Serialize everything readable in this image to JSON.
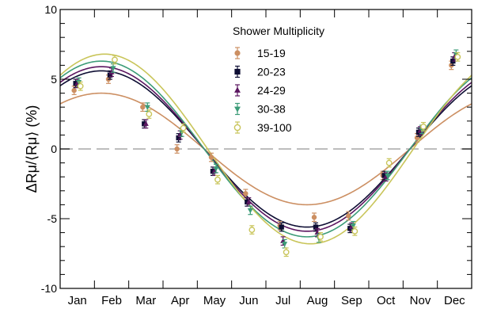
{
  "chart_data": {
    "type": "scatter",
    "ylabel": "ΔRμ/⟨Rμ⟩ (%)",
    "ylim": [
      -10,
      10
    ],
    "yticks": [
      -10,
      -5,
      0,
      5,
      10
    ],
    "x_tick_labels": [
      "Jan",
      "Feb",
      "Mar",
      "Apr",
      "May",
      "Jun",
      "Jul",
      "Aug",
      "Sep",
      "Oct",
      "Nov",
      "Dec"
    ],
    "reference_line": 0,
    "legend": {
      "title": "Shower Multiplicity",
      "placement": "top-right"
    },
    "series": [
      {
        "name": "15-19",
        "color": "#cc8f62",
        "marker": "circle-filled",
        "x": [
          0.5,
          1.5,
          2.5,
          3.5,
          4.5,
          5.5,
          6.5,
          7.5,
          8.5,
          9.5,
          10.5,
          11.5
        ],
        "y": [
          4.2,
          5.0,
          3.0,
          0.0,
          -0.6,
          -3.2,
          -5.5,
          -4.9,
          -4.8,
          -1.9,
          0.8,
          6.0
        ],
        "err": [
          0.3,
          0.3,
          0.3,
          0.3,
          0.3,
          0.3,
          0.3,
          0.3,
          0.3,
          0.3,
          0.3,
          0.3
        ],
        "fit": {
          "amp": 4.0,
          "peak_x": 1.2,
          "period": 12
        }
      },
      {
        "name": "20-23",
        "color": "#0d0d33",
        "marker": "square-filled",
        "x": [
          0.5,
          1.5,
          2.5,
          3.5,
          4.5,
          5.5,
          6.5,
          7.5,
          8.5,
          9.5,
          10.5,
          11.5
        ],
        "y": [
          4.7,
          5.3,
          1.8,
          0.8,
          -1.6,
          -3.8,
          -5.6,
          -5.6,
          -5.7,
          -1.9,
          1.2,
          6.3
        ],
        "err": [
          0.3,
          0.3,
          0.3,
          0.3,
          0.3,
          0.3,
          0.3,
          0.3,
          0.3,
          0.3,
          0.3,
          0.3
        ],
        "fit": {
          "amp": 5.6,
          "peak_x": 1.2,
          "period": 12
        }
      },
      {
        "name": "24-29",
        "color": "#5b1660",
        "marker": "triangle-up-filled",
        "x": [
          0.5,
          1.5,
          2.5,
          3.5,
          4.5,
          5.5,
          6.5,
          7.5,
          8.5,
          9.5,
          10.5,
          11.5
        ],
        "y": [
          4.7,
          5.5,
          1.8,
          1.0,
          -1.6,
          -3.8,
          -6.6,
          -6.0,
          -5.6,
          -2.0,
          1.3,
          6.6
        ],
        "err": [
          0.3,
          0.3,
          0.3,
          0.3,
          0.3,
          0.3,
          0.3,
          0.3,
          0.3,
          0.3,
          0.3,
          0.3
        ],
        "fit": {
          "amp": 5.9,
          "peak_x": 1.2,
          "period": 12
        }
      },
      {
        "name": "30-38",
        "color": "#3c9c78",
        "marker": "triangle-down-filled",
        "x": [
          0.5,
          1.5,
          2.5,
          3.5,
          4.5,
          5.5,
          6.5,
          7.5,
          8.5,
          9.5,
          10.5,
          11.5
        ],
        "y": [
          4.8,
          5.8,
          3.0,
          1.2,
          -1.4,
          -4.4,
          -6.8,
          -6.4,
          -5.5,
          -1.9,
          1.4,
          6.8
        ],
        "err": [
          0.3,
          0.3,
          0.3,
          0.3,
          0.3,
          0.3,
          0.3,
          0.3,
          0.3,
          0.3,
          0.3,
          0.3
        ],
        "fit": {
          "amp": 6.3,
          "peak_x": 1.2,
          "period": 12
        }
      },
      {
        "name": "39-100",
        "color": "#c9c55a",
        "marker": "circle-open",
        "x": [
          0.5,
          1.5,
          2.5,
          3.5,
          4.5,
          5.5,
          6.5,
          7.5,
          8.5,
          9.5,
          10.5,
          11.5
        ],
        "y": [
          4.5,
          6.4,
          2.5,
          1.5,
          -2.2,
          -5.8,
          -7.4,
          -6.3,
          -5.9,
          -1.0,
          1.6,
          6.6
        ],
        "err": [
          0.3,
          0.3,
          0.3,
          0.3,
          0.3,
          0.3,
          0.3,
          0.3,
          0.3,
          0.3,
          0.3,
          0.3
        ],
        "fit": {
          "amp": 6.8,
          "peak_x": 1.3,
          "period": 12
        }
      }
    ]
  }
}
